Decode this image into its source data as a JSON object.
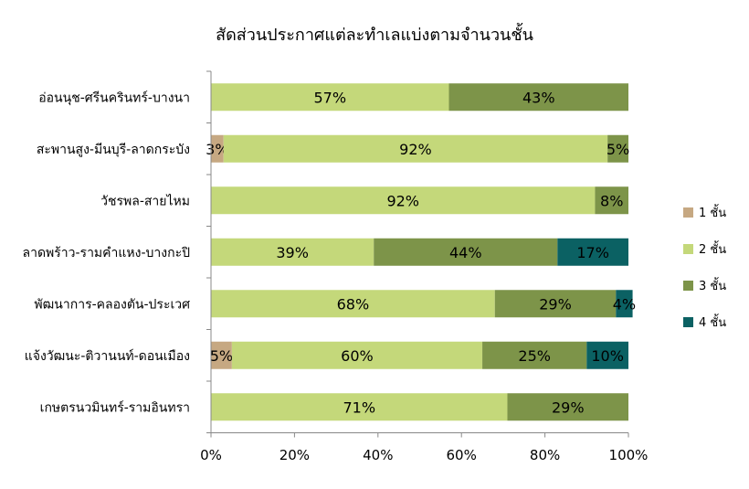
{
  "chart_data": {
    "type": "bar",
    "orientation": "horizontal",
    "stacked": "percent",
    "title": "สัดส่วนประกาศแต่ละทำเลแบ่งตามจำนวนชั้น",
    "xlabel": "",
    "ylabel": "",
    "xlim": [
      0,
      100
    ],
    "x_ticks": [
      "0%",
      "20%",
      "40%",
      "60%",
      "80%",
      "100%"
    ],
    "x_tick_values": [
      0,
      20,
      40,
      60,
      80,
      100
    ],
    "grid": false,
    "legend_position": "right",
    "categories": [
      "อ่อนนุช-ศรีนครินทร์-บางนา",
      "สะพานสูง-มีนบุรี-ลาดกระบัง",
      "วัชรพล-สายไหม",
      "ลาดพร้าว-รามคำแหง-บางกะปิ",
      "พัฒนาการ-คลองตัน-ประเวศ",
      "แจ้งวัฒนะ-ติวานนท์-ดอนเมือง",
      "เกษตรนวมินทร์-รามอินทรา"
    ],
    "series": [
      {
        "name": "1 ชั้น",
        "color": "#c6a882",
        "values": [
          0,
          3,
          0,
          0,
          0,
          5,
          0
        ],
        "labels": [
          "",
          "3%",
          "",
          "",
          "",
          "5%",
          ""
        ]
      },
      {
        "name": "2 ชั้น",
        "color": "#c4d87a",
        "values": [
          57,
          92,
          92,
          39,
          68,
          60,
          71
        ],
        "labels": [
          "57%",
          "92%",
          "92%",
          "39%",
          "68%",
          "60%",
          "71%"
        ]
      },
      {
        "name": "3 ชั้น",
        "color": "#7d9449",
        "values": [
          43,
          5,
          8,
          44,
          29,
          25,
          29
        ],
        "labels": [
          "43%",
          "5%",
          "8%",
          "44%",
          "29%",
          "25%",
          "29%"
        ]
      },
      {
        "name": "4 ชั้น",
        "color": "#0b6163",
        "values": [
          0,
          0,
          0,
          17,
          4,
          10,
          0
        ],
        "labels": [
          "",
          "",
          "",
          "17%",
          "4%",
          "10%",
          ""
        ]
      }
    ]
  }
}
